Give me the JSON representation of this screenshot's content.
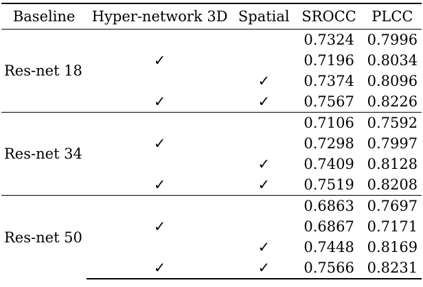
{
  "table": {
    "headers": {
      "baseline": "Baseline",
      "hyper": "Hyper-network 3D",
      "spatial": "Spatial",
      "srocc": "SROCC",
      "plcc": "PLCC"
    },
    "check_mark": "✓",
    "groups": [
      {
        "baseline": "Res-net 18",
        "rows": [
          {
            "hyper": "",
            "spatial": "",
            "srocc": "0.7324",
            "plcc": "0.7996",
            "best": false
          },
          {
            "hyper": "✓",
            "spatial": "",
            "srocc": "0.7196",
            "plcc": "0.8034",
            "best": false
          },
          {
            "hyper": "",
            "spatial": "✓",
            "srocc": "0.7374",
            "plcc": "0.8096",
            "best": false
          },
          {
            "hyper": "✓",
            "spatial": "✓",
            "srocc": "0.7567",
            "plcc": "0.8226",
            "best": true
          }
        ]
      },
      {
        "baseline": "Res-net 34",
        "rows": [
          {
            "hyper": "",
            "spatial": "",
            "srocc": "0.7106",
            "plcc": "0.7592",
            "best": false
          },
          {
            "hyper": "✓",
            "spatial": "",
            "srocc": "0.7298",
            "plcc": "0.7997",
            "best": false
          },
          {
            "hyper": "",
            "spatial": "✓",
            "srocc": "0.7409",
            "plcc": "0.8128",
            "best": false
          },
          {
            "hyper": "✓",
            "spatial": "✓",
            "srocc": "0.7519",
            "plcc": "0.8208",
            "best": true
          }
        ]
      },
      {
        "baseline": "Res-net 50",
        "rows": [
          {
            "hyper": "",
            "spatial": "",
            "srocc": "0.6863",
            "plcc": "0.7697",
            "best": false
          },
          {
            "hyper": "✓",
            "spatial": "",
            "srocc": "0.6867",
            "plcc": "0.7171",
            "best": false
          },
          {
            "hyper": "",
            "spatial": "✓",
            "srocc": "0.7448",
            "plcc": "0.8169",
            "best": false
          },
          {
            "hyper": "✓",
            "spatial": "✓",
            "srocc": "0.7566",
            "plcc": "0.8231",
            "best": true
          }
        ]
      }
    ]
  }
}
